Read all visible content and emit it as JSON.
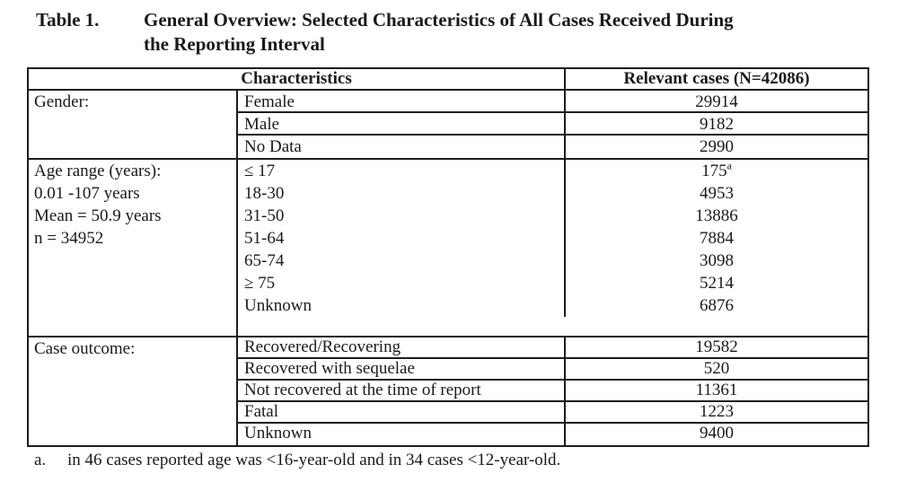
{
  "title": {
    "number": "Table 1.",
    "line1": "General Overview: Selected Characteristics of All Cases Received During",
    "line2": "the Reporting Interval"
  },
  "table": {
    "header": {
      "characteristics": "Characteristics",
      "relevant_cases": "Relevant cases (N=42086)"
    },
    "gender": {
      "label": "Gender:",
      "rows": [
        {
          "label": "Female",
          "value": "29914"
        },
        {
          "label": "Male",
          "value": "9182"
        },
        {
          "label": "No Data",
          "value": "2990"
        }
      ]
    },
    "age": {
      "label_lines": [
        "Age range (years):",
        "0.01 -107 years",
        "Mean = 50.9 years",
        "n = 34952"
      ],
      "rows": [
        {
          "label": "≤ 17",
          "value": "175",
          "sup": "a"
        },
        {
          "label": "18-30",
          "value": "4953"
        },
        {
          "label": "31-50",
          "value": "13886"
        },
        {
          "label": "51-64",
          "value": "7884"
        },
        {
          "label": "65-74",
          "value": "3098"
        },
        {
          "label": "≥ 75",
          "value": "5214"
        },
        {
          "label": "Unknown",
          "value": "6876"
        }
      ]
    },
    "outcome": {
      "label": "Case outcome:",
      "rows": [
        {
          "label": "Recovered/Recovering",
          "value": "19582"
        },
        {
          "label": "Recovered with sequelae",
          "value": "520"
        },
        {
          "label": "Not recovered at the time of report",
          "value": "11361"
        },
        {
          "label": "Fatal",
          "value": "1223"
        },
        {
          "label": "Unknown",
          "value": "9400"
        }
      ]
    }
  },
  "footnote": {
    "marker": "a.",
    "text": "in 46 cases reported age was <16-year-old and in 34 cases <12-year-old."
  }
}
